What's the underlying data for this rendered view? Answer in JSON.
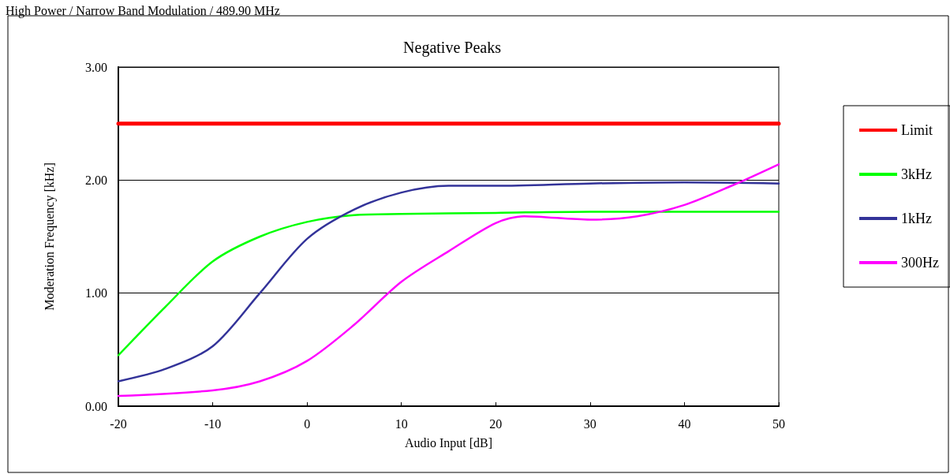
{
  "chart_data": {
    "type": "line",
    "title": "Negative Peaks",
    "subtitle": "High Power / Narrow Band Modulation / 489.90 MHz",
    "xlabel": "Audio Input [dB]",
    "ylabel": "Moderation Frequency [kHz]",
    "xlim": [
      -20,
      50
    ],
    "xticks": [
      -20,
      -10,
      0,
      10,
      20,
      30,
      40,
      50
    ],
    "ylim": [
      0,
      3
    ],
    "yticks": [
      {
        "value": 0,
        "label": "0.00"
      },
      {
        "value": 1,
        "label": "1.00"
      },
      {
        "value": 2,
        "label": "2.00"
      },
      {
        "value": 3,
        "label": "3.00"
      }
    ],
    "grid": "y",
    "legend": "right",
    "marker": "none",
    "line_style": "solid",
    "series": [
      {
        "name": "Limit",
        "color": "#ff0000",
        "x": [
          -20,
          50
        ],
        "values": [
          2.5,
          2.5
        ]
      },
      {
        "name": "3kHz",
        "color": "#00ff00",
        "x": [
          -20,
          -15,
          -10,
          -5,
          0,
          5,
          10,
          20,
          30,
          40,
          50
        ],
        "values": [
          0.45,
          0.88,
          1.28,
          1.5,
          1.63,
          1.69,
          1.7,
          1.71,
          1.72,
          1.72,
          1.72
        ]
      },
      {
        "name": "1kHz",
        "color": "#333399",
        "x": [
          -20,
          -15,
          -10,
          -5,
          0,
          5,
          10,
          15,
          20,
          30,
          40,
          50
        ],
        "values": [
          0.22,
          0.33,
          0.53,
          1.0,
          1.48,
          1.74,
          1.89,
          1.95,
          1.95,
          1.97,
          1.98,
          1.97
        ]
      },
      {
        "name": "300Hz",
        "color": "#ff00ff",
        "x": [
          -20,
          -10,
          -5,
          0,
          5,
          10,
          15,
          20,
          23,
          30,
          35,
          40,
          45,
          50
        ],
        "values": [
          0.09,
          0.14,
          0.22,
          0.4,
          0.72,
          1.1,
          1.37,
          1.62,
          1.68,
          1.65,
          1.68,
          1.78,
          1.95,
          2.14
        ]
      }
    ]
  }
}
